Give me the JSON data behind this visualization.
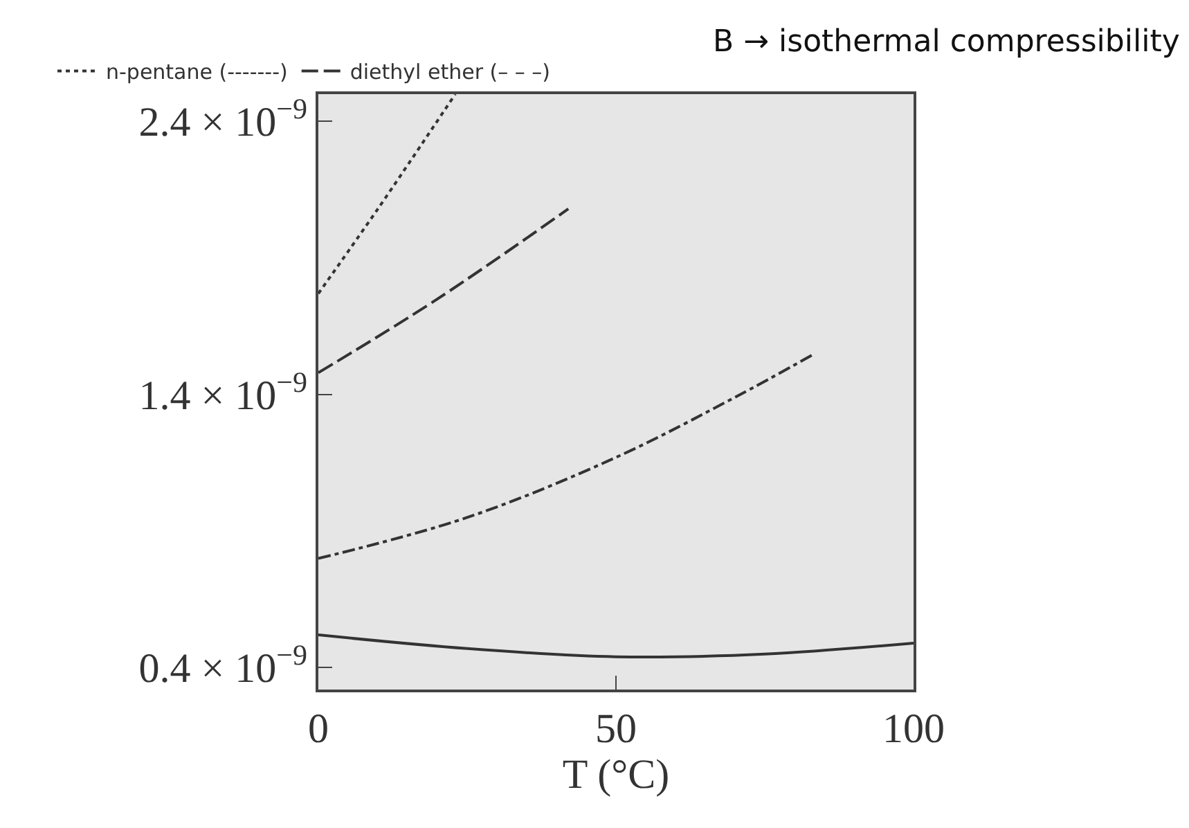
{
  "chart_data": {
    "type": "line",
    "xlabel": "T (°C)",
    "xlim": [
      0,
      100
    ],
    "xticks": [
      0,
      50,
      100
    ],
    "ylim": [
      3.2e-10,
      2.5e-09
    ],
    "yticks": [
      {
        "value": 4e-10,
        "label": "0.4 × 10$^{−9}$"
      },
      {
        "value": 1.4e-09,
        "label": "1.4 × 10$^{−9}$"
      },
      {
        "value": 2.4e-09,
        "label": "2.4 × 10$^{−9}$"
      }
    ],
    "series": [
      {
        "name": "n-pentane (-------)",
        "color": "#333333",
        "line_style": "dotted",
        "x": [
          0,
          10,
          23
        ],
        "values": [
          1.77e-09,
          2.08e-09,
          2.5e-09
        ]
      },
      {
        "name": "diethyl ether (– – –)",
        "color": "#333333",
        "line_style": "dashed",
        "x": [
          0,
          20,
          42
        ],
        "values": [
          1.48e-09,
          1.75e-09,
          2.08e-09
        ]
      },
      {
        "color": "#333333",
        "line_style": "dashdot",
        "x": [
          0,
          25,
          50,
          70,
          83
        ],
        "values": [
          8e-10,
          9.5e-10,
          1.17e-09,
          1.39e-09,
          1.545e-09
        ]
      },
      {
        "color": "#333333",
        "line_style": "solid",
        "x": [
          0,
          25,
          50,
          75,
          100
        ],
        "values": [
          5.2e-10,
          4.7e-10,
          4.4e-10,
          4.5e-10,
          4.9e-10
        ]
      }
    ],
    "annotations": [
      "B → isothermal compressibility"
    ],
    "legend": "top",
    "grid": false,
    "marker": "none"
  }
}
